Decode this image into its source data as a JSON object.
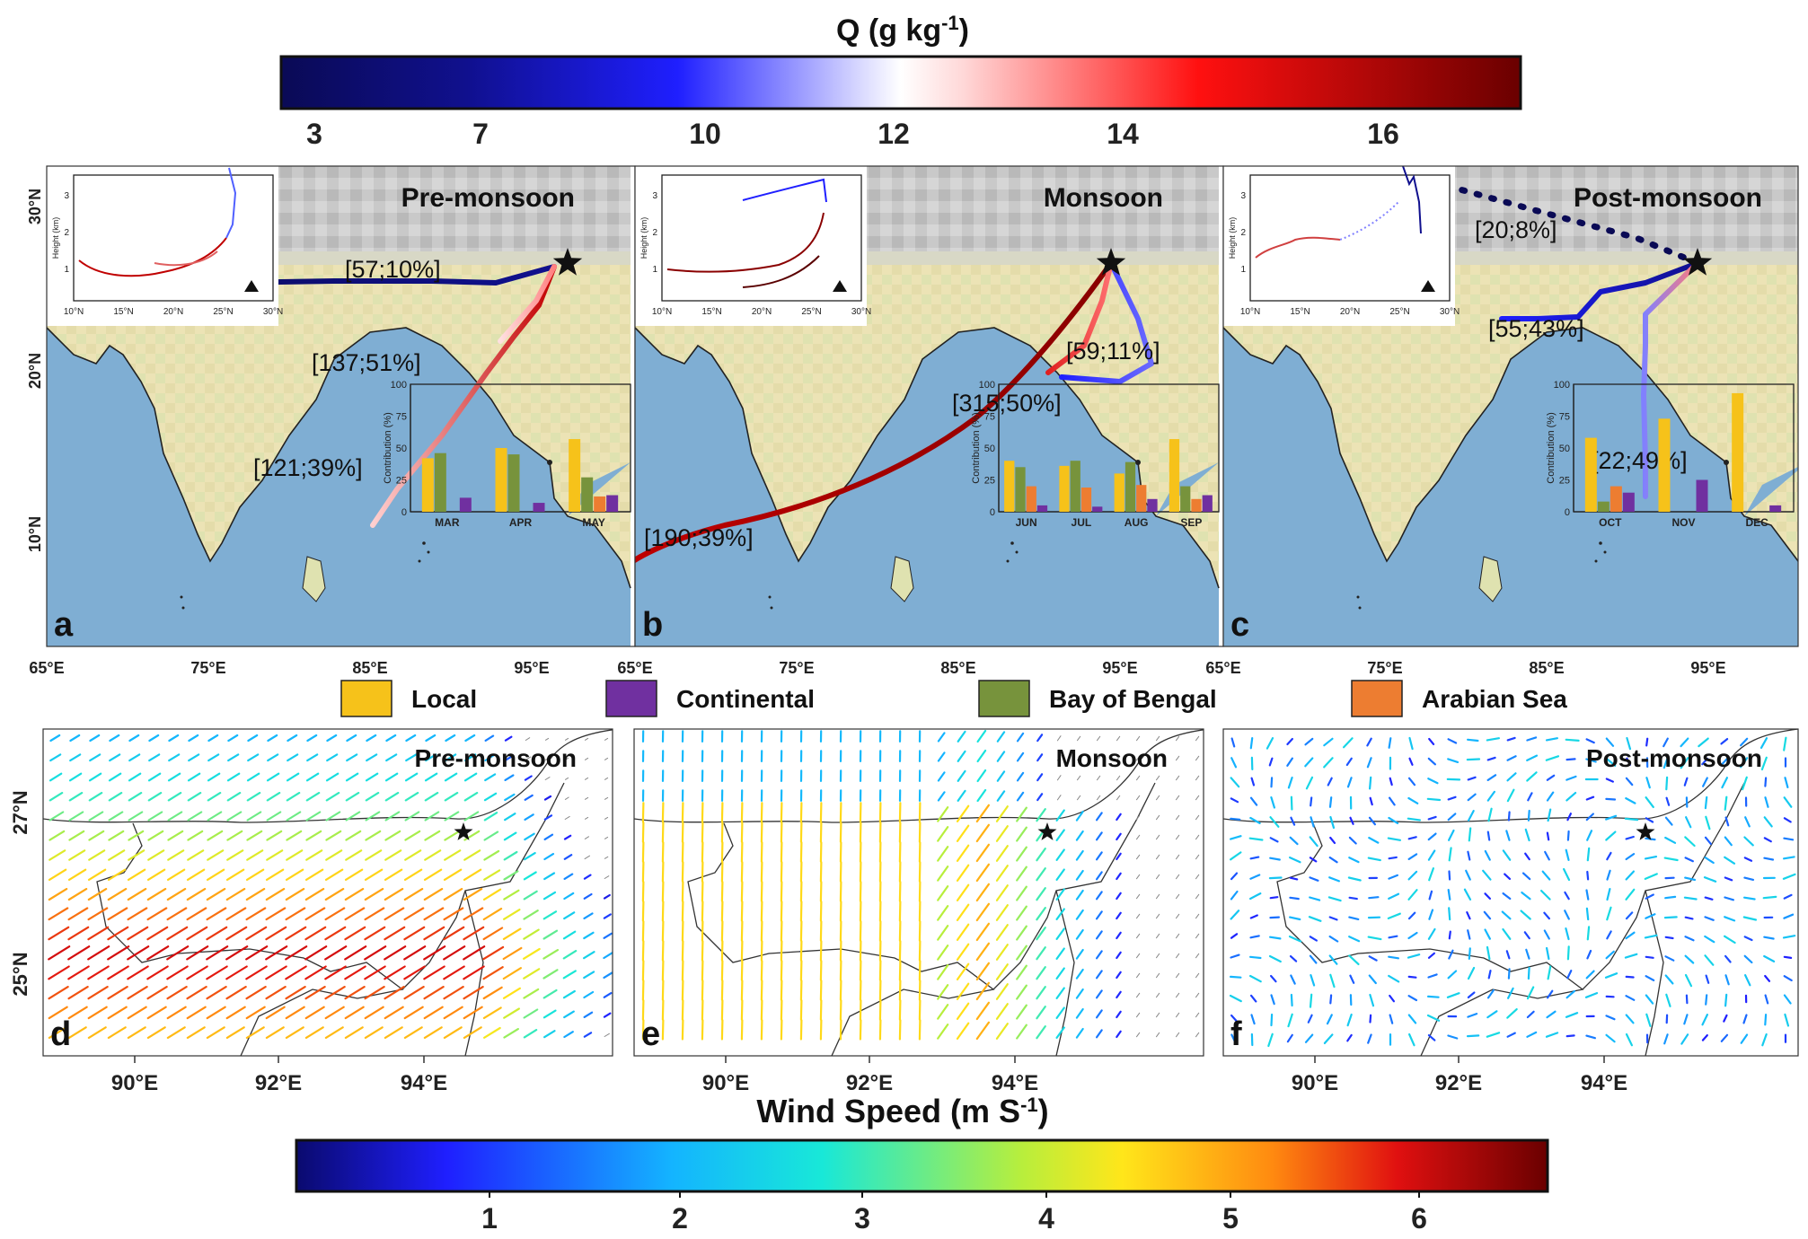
{
  "q_colorbar": {
    "title": "Q (g kg",
    "title_sup": "-1",
    "title_close": ")",
    "ticks": [
      "3",
      "7",
      "10",
      "12",
      "14",
      "16"
    ]
  },
  "map_axes": {
    "lat_ticks": [
      "30°N",
      "20°N",
      "10°N"
    ],
    "lon_ticks": [
      "65°E",
      "75°E",
      "85°E",
      "95°E"
    ]
  },
  "trajectory_panels": [
    {
      "letter": "a",
      "season": "Pre-monsoon",
      "annotations": [
        "[57;10%]",
        "[137;51%]",
        "[121;39%]"
      ],
      "bar_months": [
        "MAR",
        "APR",
        "MAY"
      ],
      "contributions": [
        [
          42,
          46,
          0,
          11
        ],
        [
          50,
          45,
          0,
          7
        ],
        [
          57,
          27,
          12,
          13
        ]
      ]
    },
    {
      "letter": "b",
      "season": "Monsoon",
      "annotations": [
        "[59;11%]",
        "[315;50%]",
        "[190;39%]"
      ],
      "bar_months": [
        "JUN",
        "JUL",
        "AUG",
        "SEP"
      ],
      "contributions": [
        [
          40,
          35,
          20,
          5
        ],
        [
          36,
          40,
          19,
          4
        ],
        [
          30,
          39,
          21,
          10
        ],
        [
          57,
          20,
          10,
          13
        ]
      ]
    },
    {
      "letter": "c",
      "season": "Post-monsoon",
      "annotations": [
        "[20;8%]",
        "[55;43%]",
        "[22;49%]"
      ],
      "bar_months": [
        "OCT",
        "NOV",
        "DEC"
      ],
      "contributions": [
        [
          58,
          8,
          20,
          15
        ],
        [
          73,
          0,
          0,
          25
        ],
        [
          93,
          0,
          0,
          5
        ]
      ]
    }
  ],
  "inset": {
    "ylabel": "Height (km)",
    "yticks": [
      "1",
      "2",
      "3"
    ],
    "xticks": [
      "10°N",
      "15°N",
      "20°N",
      "25°N",
      "30°N"
    ]
  },
  "bar_inset": {
    "ylabel": "Contribution (%)",
    "yticks": [
      "0",
      "25",
      "50",
      "75",
      "100"
    ]
  },
  "legend": [
    {
      "label": "Local",
      "color": "#f6c21a"
    },
    {
      "label": "Continental",
      "color": "#7030a0"
    },
    {
      "label": "Bay of Bengal",
      "color": "#77933c"
    },
    {
      "label": "Arabian Sea",
      "color": "#ed7d31"
    }
  ],
  "wind_panels": [
    {
      "letter": "d",
      "season": "Pre-monsoon"
    },
    {
      "letter": "e",
      "season": "Monsoon"
    },
    {
      "letter": "f",
      "season": "Post-monsoon"
    }
  ],
  "wind_axes": {
    "lat_ticks": [
      "27°N",
      "25°N"
    ],
    "lon_ticks": [
      "90°E",
      "92°E",
      "94°E"
    ]
  },
  "wind_colorbar": {
    "title": "Wind Speed (m S",
    "title_sup": "-1",
    "title_close": ")",
    "ticks": [
      "1",
      "2",
      "3",
      "4",
      "5",
      "6"
    ]
  },
  "colors": {
    "ocean": "#7faed3",
    "land": "#ece3b5",
    "highland": "#c8c8c8"
  }
}
